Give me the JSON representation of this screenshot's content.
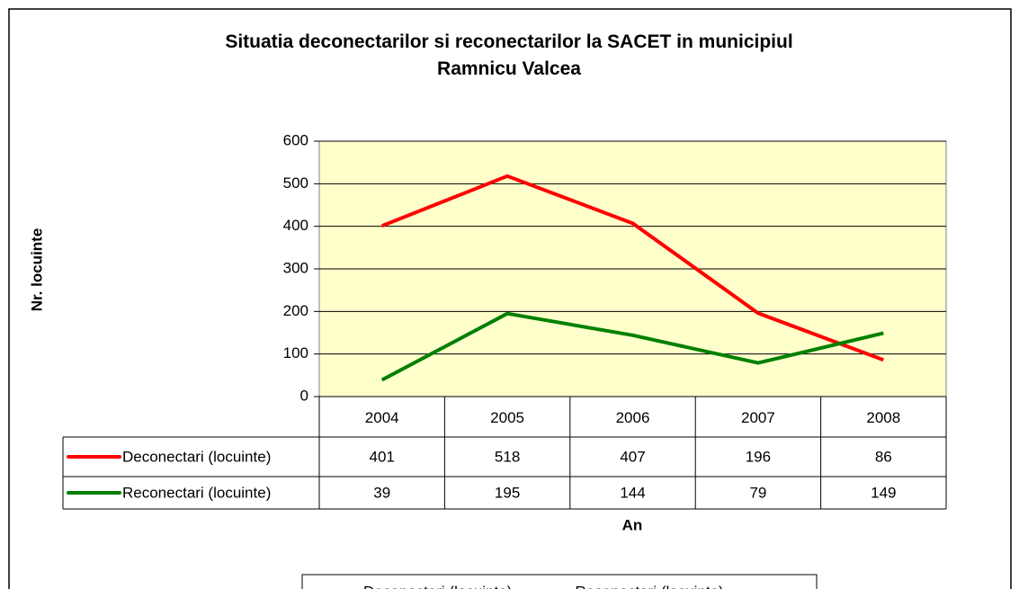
{
  "chart_data": {
    "type": "line",
    "title": "Situatia deconectarilor si reconectarilor la SACET in municipiul Ramnicu Valcea",
    "x_label": "An",
    "y_label": "Nr. locuinte",
    "categories": [
      "2004",
      "2005",
      "2006",
      "2007",
      "2008"
    ],
    "series": [
      {
        "name": "Deconectari (locuinte)",
        "color": "#ff0000",
        "values": [
          401,
          518,
          407,
          196,
          86
        ]
      },
      {
        "name": "Reconectari (locuinte)",
        "color": "#008000",
        "values": [
          39,
          195,
          144,
          79,
          149
        ]
      }
    ],
    "ylim": [
      0,
      600
    ],
    "yticks": [
      0,
      100,
      200,
      300,
      400,
      500,
      600
    ],
    "grid": true,
    "legend": "bottom",
    "data_table": true
  }
}
